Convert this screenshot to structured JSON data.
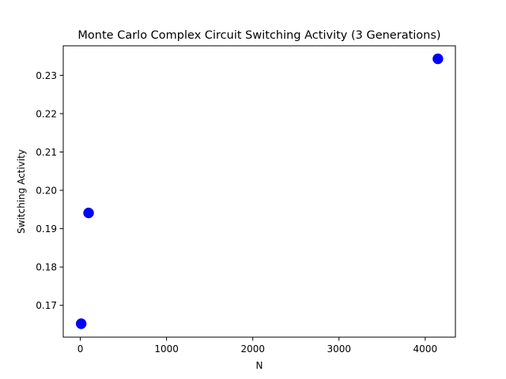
{
  "chart_data": {
    "type": "scatter",
    "title": "Monte Carlo Complex Circuit Switching Activity (3 Generations)",
    "xlabel": "N",
    "ylabel": "Switching Activity",
    "xlim": [
      -198,
      4350
    ],
    "ylim": [
      0.1617,
      0.2377
    ],
    "xticks": [
      0,
      1000,
      2000,
      3000,
      4000
    ],
    "xtick_labels": [
      "0",
      "1000",
      "2000",
      "3000",
      "4000"
    ],
    "yticks": [
      0.17,
      0.18,
      0.19,
      0.2,
      0.21,
      0.22,
      0.23
    ],
    "ytick_labels": [
      "0.17",
      "0.18",
      "0.19",
      "0.20",
      "0.21",
      "0.22",
      "0.23"
    ],
    "grid": false,
    "legend": "none",
    "marker_color": "#0000ff",
    "points": [
      {
        "x": 10,
        "y": 0.1652
      },
      {
        "x": 96,
        "y": 0.1941
      },
      {
        "x": 4147,
        "y": 0.2343
      }
    ]
  }
}
